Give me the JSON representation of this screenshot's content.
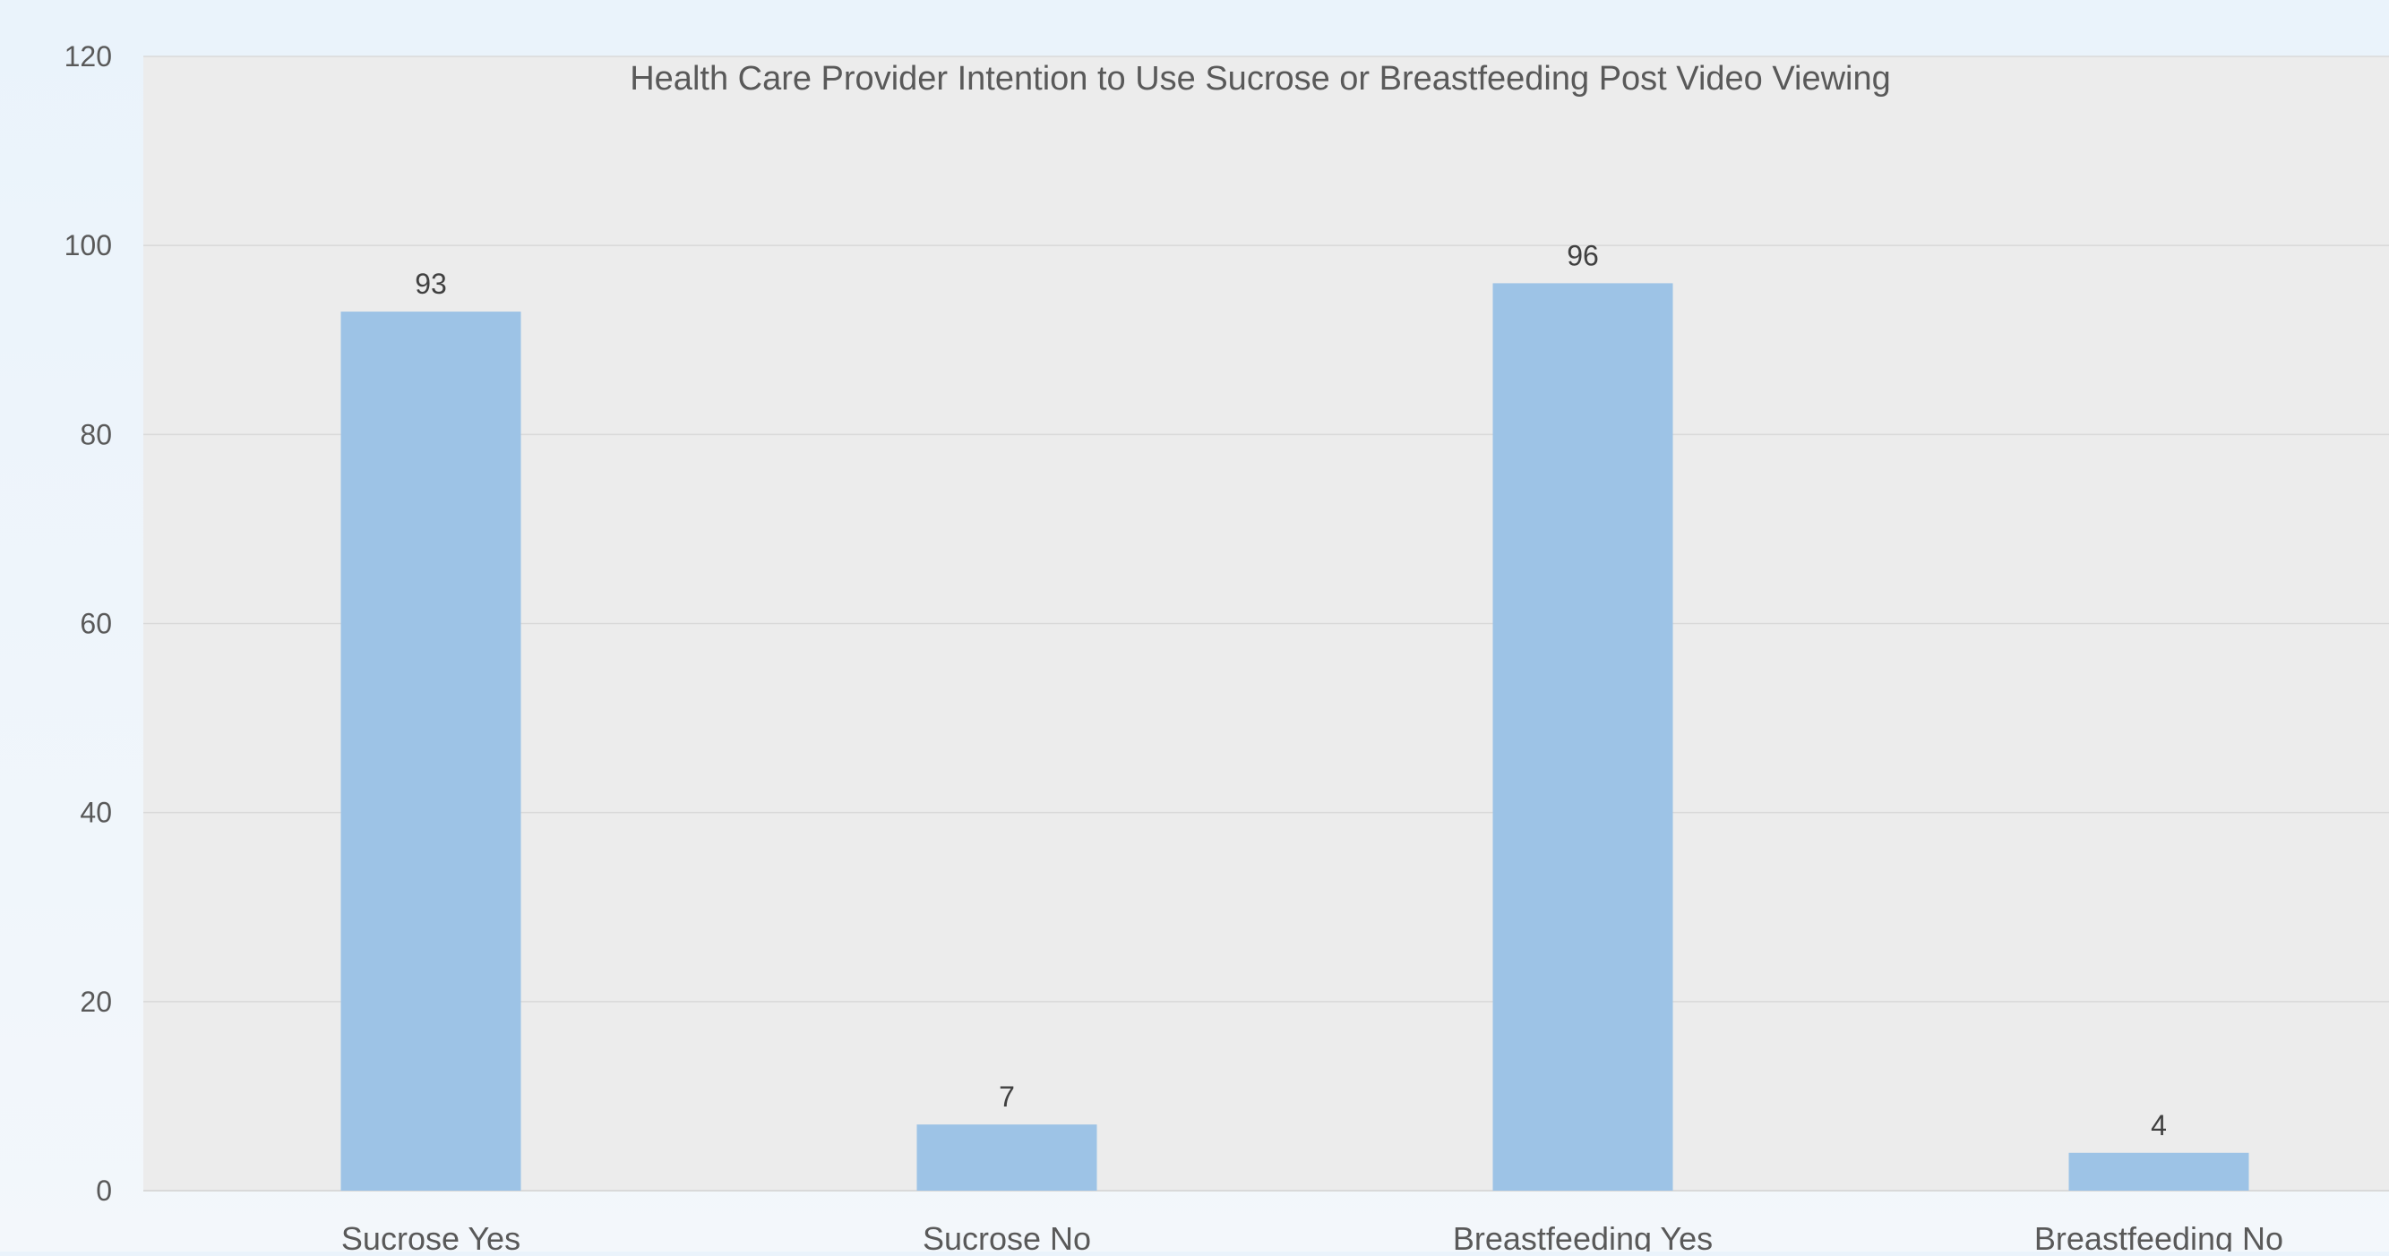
{
  "chart_data": {
    "type": "bar",
    "title": "Health Care Provider Intention to Use Sucrose or Breastfeeding Post Video Viewing",
    "xlabel": "",
    "ylabel": "",
    "categories": [
      "Sucrose Yes",
      "Sucrose No",
      "Breastfeeding Yes",
      "Breastfeeding No"
    ],
    "values": [
      93,
      7,
      96,
      4
    ],
    "data_labels": [
      "93",
      "7",
      "96",
      "4"
    ],
    "yticks": [
      0,
      20,
      40,
      60,
      80,
      100,
      120
    ],
    "ylim": [
      0,
      120
    ],
    "grid": true,
    "legend": "none",
    "colors": {
      "bar": "#9dc3e6",
      "plot_background": "#ececec",
      "gridline": "#d9d9d9",
      "text": "#595959",
      "label": "#404040"
    }
  }
}
